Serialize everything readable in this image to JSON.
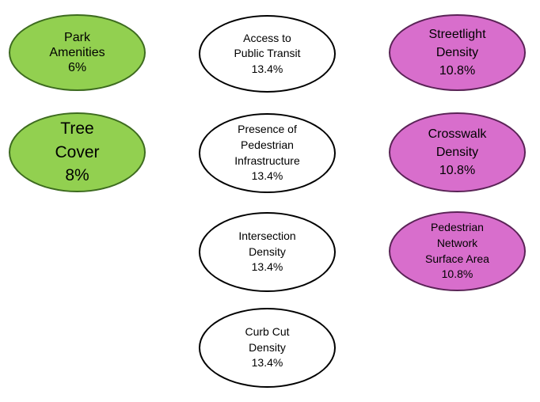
{
  "colors": {
    "green_fill": "#92d050",
    "green_border": "#3d6b1f",
    "white_fill": "#ffffff",
    "white_border": "#000000",
    "magenta_fill": "#d86ecc",
    "magenta_border": "#5a2356"
  },
  "nodes": {
    "park": {
      "lines": [
        "Park",
        "Amenities",
        "6%"
      ]
    },
    "tree": {
      "lines": [
        "Tree",
        "Cover",
        "8%"
      ]
    },
    "transit": {
      "lines": [
        "Access to",
        "Public Transit",
        "13.4%"
      ]
    },
    "ped": {
      "lines": [
        "Presence of",
        "Pedestrian",
        "Infrastructure",
        "13.4%"
      ]
    },
    "inter": {
      "lines": [
        "Intersection",
        "Density",
        "13.4%"
      ]
    },
    "curb": {
      "lines": [
        "Curb Cut",
        "Density",
        "13.4%"
      ]
    },
    "street": {
      "lines": [
        "Streetlight",
        "Density",
        "10.8%"
      ]
    },
    "cross": {
      "lines": [
        "Crosswalk",
        "Density",
        "10.8%"
      ]
    },
    "network": {
      "lines": [
        "Pedestrian",
        "Network",
        "Surface Area",
        "10.8%"
      ]
    }
  }
}
